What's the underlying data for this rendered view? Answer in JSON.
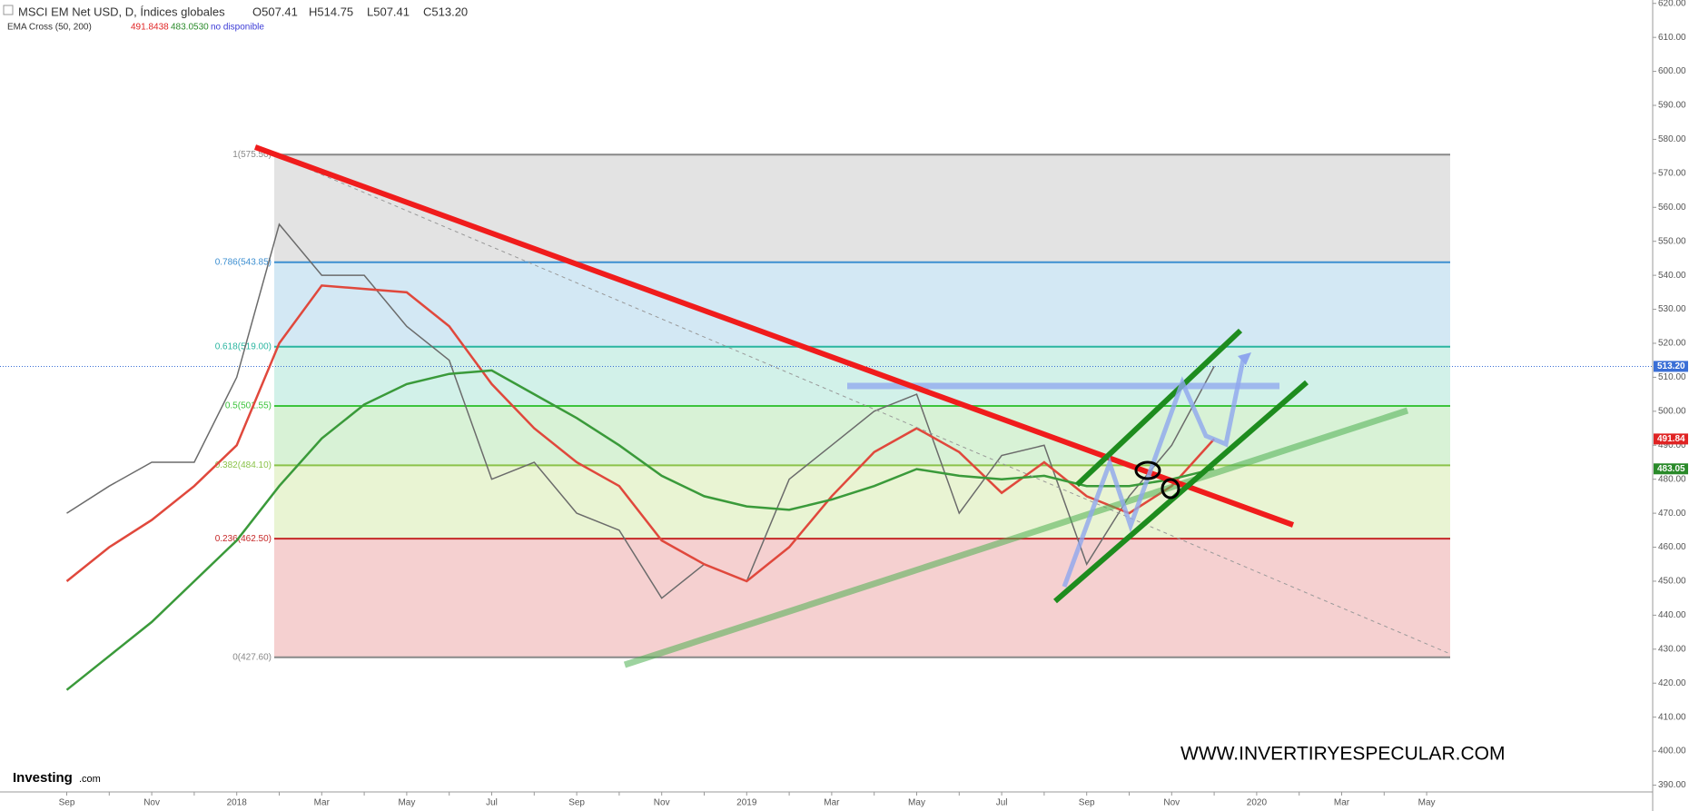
{
  "header": {
    "title": "MSCI EM Net USD, D, Índices globales",
    "open": "O507.41",
    "high": "H514.75",
    "low": "L507.41",
    "close": "C513.20",
    "indicator": "EMA Cross (50, 200)",
    "ema50": "491.8438",
    "ema200": "483.0530",
    "status": "no disponible"
  },
  "chart_data": {
    "type": "line",
    "categories": [
      "Sep",
      null,
      "Nov",
      null,
      "2018",
      null,
      "Mar",
      null,
      "May",
      null,
      "Jul",
      null,
      "Sep",
      null,
      "Nov",
      null,
      "2019",
      null,
      "Mar",
      null,
      "May",
      null,
      "Jul",
      null,
      "Sep",
      null,
      "Nov",
      null,
      "2020",
      null,
      "Mar",
      null,
      "May"
    ],
    "series": [
      {
        "color": "#6b6b6b",
        "values": [
          470,
          478,
          485,
          485,
          510,
          555,
          540,
          540,
          525,
          515,
          480,
          485,
          470,
          465,
          445,
          455,
          450,
          480,
          490,
          500,
          505,
          470,
          487,
          490,
          455,
          475,
          490,
          513.2,
          null,
          null,
          null,
          null,
          null
        ]
      },
      {
        "color": "#e0483c",
        "values": [
          450,
          460,
          468,
          478,
          490,
          520,
          537,
          536,
          535,
          525,
          508,
          495,
          485,
          478,
          462,
          455,
          450,
          460,
          475,
          488,
          495,
          488,
          476,
          485,
          475,
          470,
          478,
          491.84,
          null,
          null,
          null,
          null,
          null
        ]
      },
      {
        "color": "#3a9a3a",
        "values": [
          418,
          428,
          438,
          450,
          462,
          478,
          492,
          502,
          508,
          511,
          512,
          505,
          498,
          490,
          481,
          475,
          472,
          471,
          474,
          478,
          483,
          481,
          480,
          481,
          478,
          478,
          480,
          483.05,
          null,
          null,
          null,
          null,
          null
        ]
      }
    ],
    "ylim": [
      388,
      621
    ],
    "yticks": [
      {
        "value": 390,
        "label": "390.00"
      },
      {
        "value": 400,
        "label": "400.00"
      },
      {
        "value": 410,
        "label": "410.00"
      },
      {
        "value": 420,
        "label": "420.00"
      },
      {
        "value": 430,
        "label": "430.00"
      },
      {
        "value": 440,
        "label": "440.00"
      },
      {
        "value": 450,
        "label": "450.00"
      },
      {
        "value": 460,
        "label": "460.00"
      },
      {
        "value": 470,
        "label": "470.00"
      },
      {
        "value": 480,
        "label": "480.00"
      },
      {
        "value": 490,
        "label": "490.00"
      },
      {
        "value": 500,
        "label": "500.00"
      },
      {
        "value": 510,
        "label": "510.00"
      },
      {
        "value": 520,
        "label": "520.00"
      },
      {
        "value": 530,
        "label": "530.00"
      },
      {
        "value": 540,
        "label": "540.00"
      },
      {
        "value": 550,
        "label": "550.00"
      },
      {
        "value": 560,
        "label": "560.00"
      },
      {
        "value": 570,
        "label": "570.00"
      },
      {
        "value": 580,
        "label": "580.00"
      },
      {
        "value": 590,
        "label": "590.00"
      },
      {
        "value": 600,
        "label": "600.00"
      },
      {
        "value": 610,
        "label": "610.00"
      },
      {
        "value": 620,
        "label": "620.00"
      }
    ],
    "fib_levels": [
      {
        "value": 575.5,
        "label": "1(575.50)",
        "color": "#888888",
        "fill": "#e3e3e3"
      },
      {
        "value": 543.85,
        "label": "0.786(543.85)",
        "color": "#3d8fd1",
        "fill": "#d3e8f4"
      },
      {
        "value": 519,
        "label": "0.618(519.00)",
        "color": "#2bb5a0",
        "fill": "#d2f1e9"
      },
      {
        "value": 501.55,
        "label": "0.5(501.55)",
        "color": "#3cc43c",
        "fill": "#d8f2d6"
      },
      {
        "value": 484.1,
        "label": "0.382(484.10)",
        "color": "#8bc34a",
        "fill": "#e9f4d3"
      },
      {
        "value": 462.5,
        "label": "0.236(462.50)",
        "color": "#c62828",
        "fill": "#f5d0d0"
      },
      {
        "value": 427.6,
        "label": "0(427.60)",
        "color": "#888888",
        "fill": "none"
      }
    ],
    "price_tags": [
      {
        "value": 513.2,
        "label": "513.20",
        "color": "#3b6fd6"
      },
      {
        "value": 491.84,
        "label": "491.84",
        "color": "#e02424"
      },
      {
        "value": 483.05,
        "label": "483.05",
        "color": "#2a8a2a"
      }
    ]
  },
  "watermark": "WWW.INVERTIRYESPECULAR.COM",
  "logo": {
    "name": "Investing",
    "suffix": ".com"
  }
}
